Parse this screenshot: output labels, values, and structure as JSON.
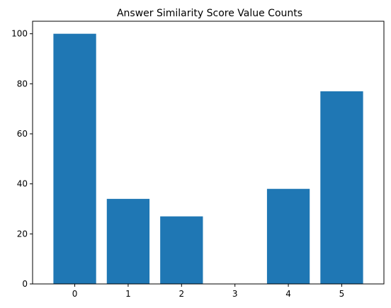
{
  "chart_data": {
    "type": "bar",
    "title": "Answer Similarity Score Value Counts",
    "xlabel": "",
    "ylabel": "",
    "categories": [
      "0",
      "1",
      "2",
      "3",
      "4",
      "5"
    ],
    "values": [
      100,
      34,
      27,
      0,
      38,
      77
    ],
    "ylim": [
      0,
      105
    ],
    "yticks": [
      0,
      20,
      40,
      60,
      80,
      100
    ],
    "grid": false,
    "bar_color": "#1f77b4"
  }
}
